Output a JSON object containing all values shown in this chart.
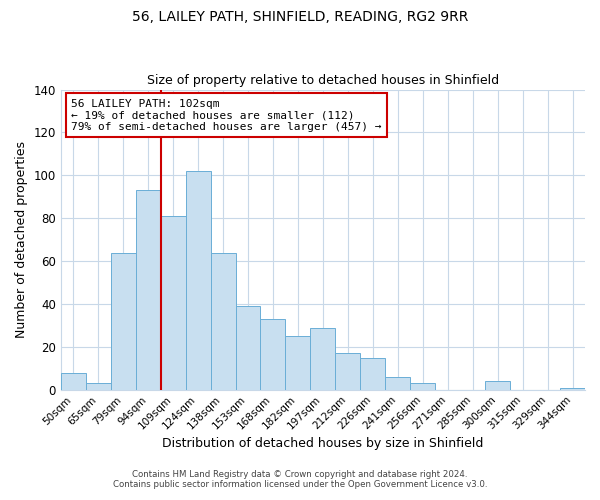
{
  "title": "56, LAILEY PATH, SHINFIELD, READING, RG2 9RR",
  "subtitle": "Size of property relative to detached houses in Shinfield",
  "xlabel": "Distribution of detached houses by size in Shinfield",
  "ylabel": "Number of detached properties",
  "bin_labels": [
    "50sqm",
    "65sqm",
    "79sqm",
    "94sqm",
    "109sqm",
    "124sqm",
    "138sqm",
    "153sqm",
    "168sqm",
    "182sqm",
    "197sqm",
    "212sqm",
    "226sqm",
    "241sqm",
    "256sqm",
    "271sqm",
    "285sqm",
    "300sqm",
    "315sqm",
    "329sqm",
    "344sqm"
  ],
  "bar_heights": [
    8,
    3,
    64,
    93,
    81,
    102,
    64,
    39,
    33,
    25,
    29,
    17,
    15,
    6,
    3,
    0,
    0,
    4,
    0,
    0,
    1
  ],
  "bar_color": "#c8dff0",
  "bar_edge_color": "#6aaed6",
  "vline_x_idx": 3.5,
  "vline_color": "#cc0000",
  "annotation_line1": "56 LAILEY PATH: 102sqm",
  "annotation_line2": "← 19% of detached houses are smaller (112)",
  "annotation_line3": "79% of semi-detached houses are larger (457) →",
  "annotation_box_edge": "#cc0000",
  "ylim": [
    0,
    140
  ],
  "yticks": [
    0,
    20,
    40,
    60,
    80,
    100,
    120,
    140
  ],
  "footer_line1": "Contains HM Land Registry data © Crown copyright and database right 2024.",
  "footer_line2": "Contains public sector information licensed under the Open Government Licence v3.0.",
  "background_color": "#ffffff",
  "grid_color": "#c8d8e8",
  "title_fontsize": 10,
  "subtitle_fontsize": 9,
  "annotation_fontsize": 8
}
